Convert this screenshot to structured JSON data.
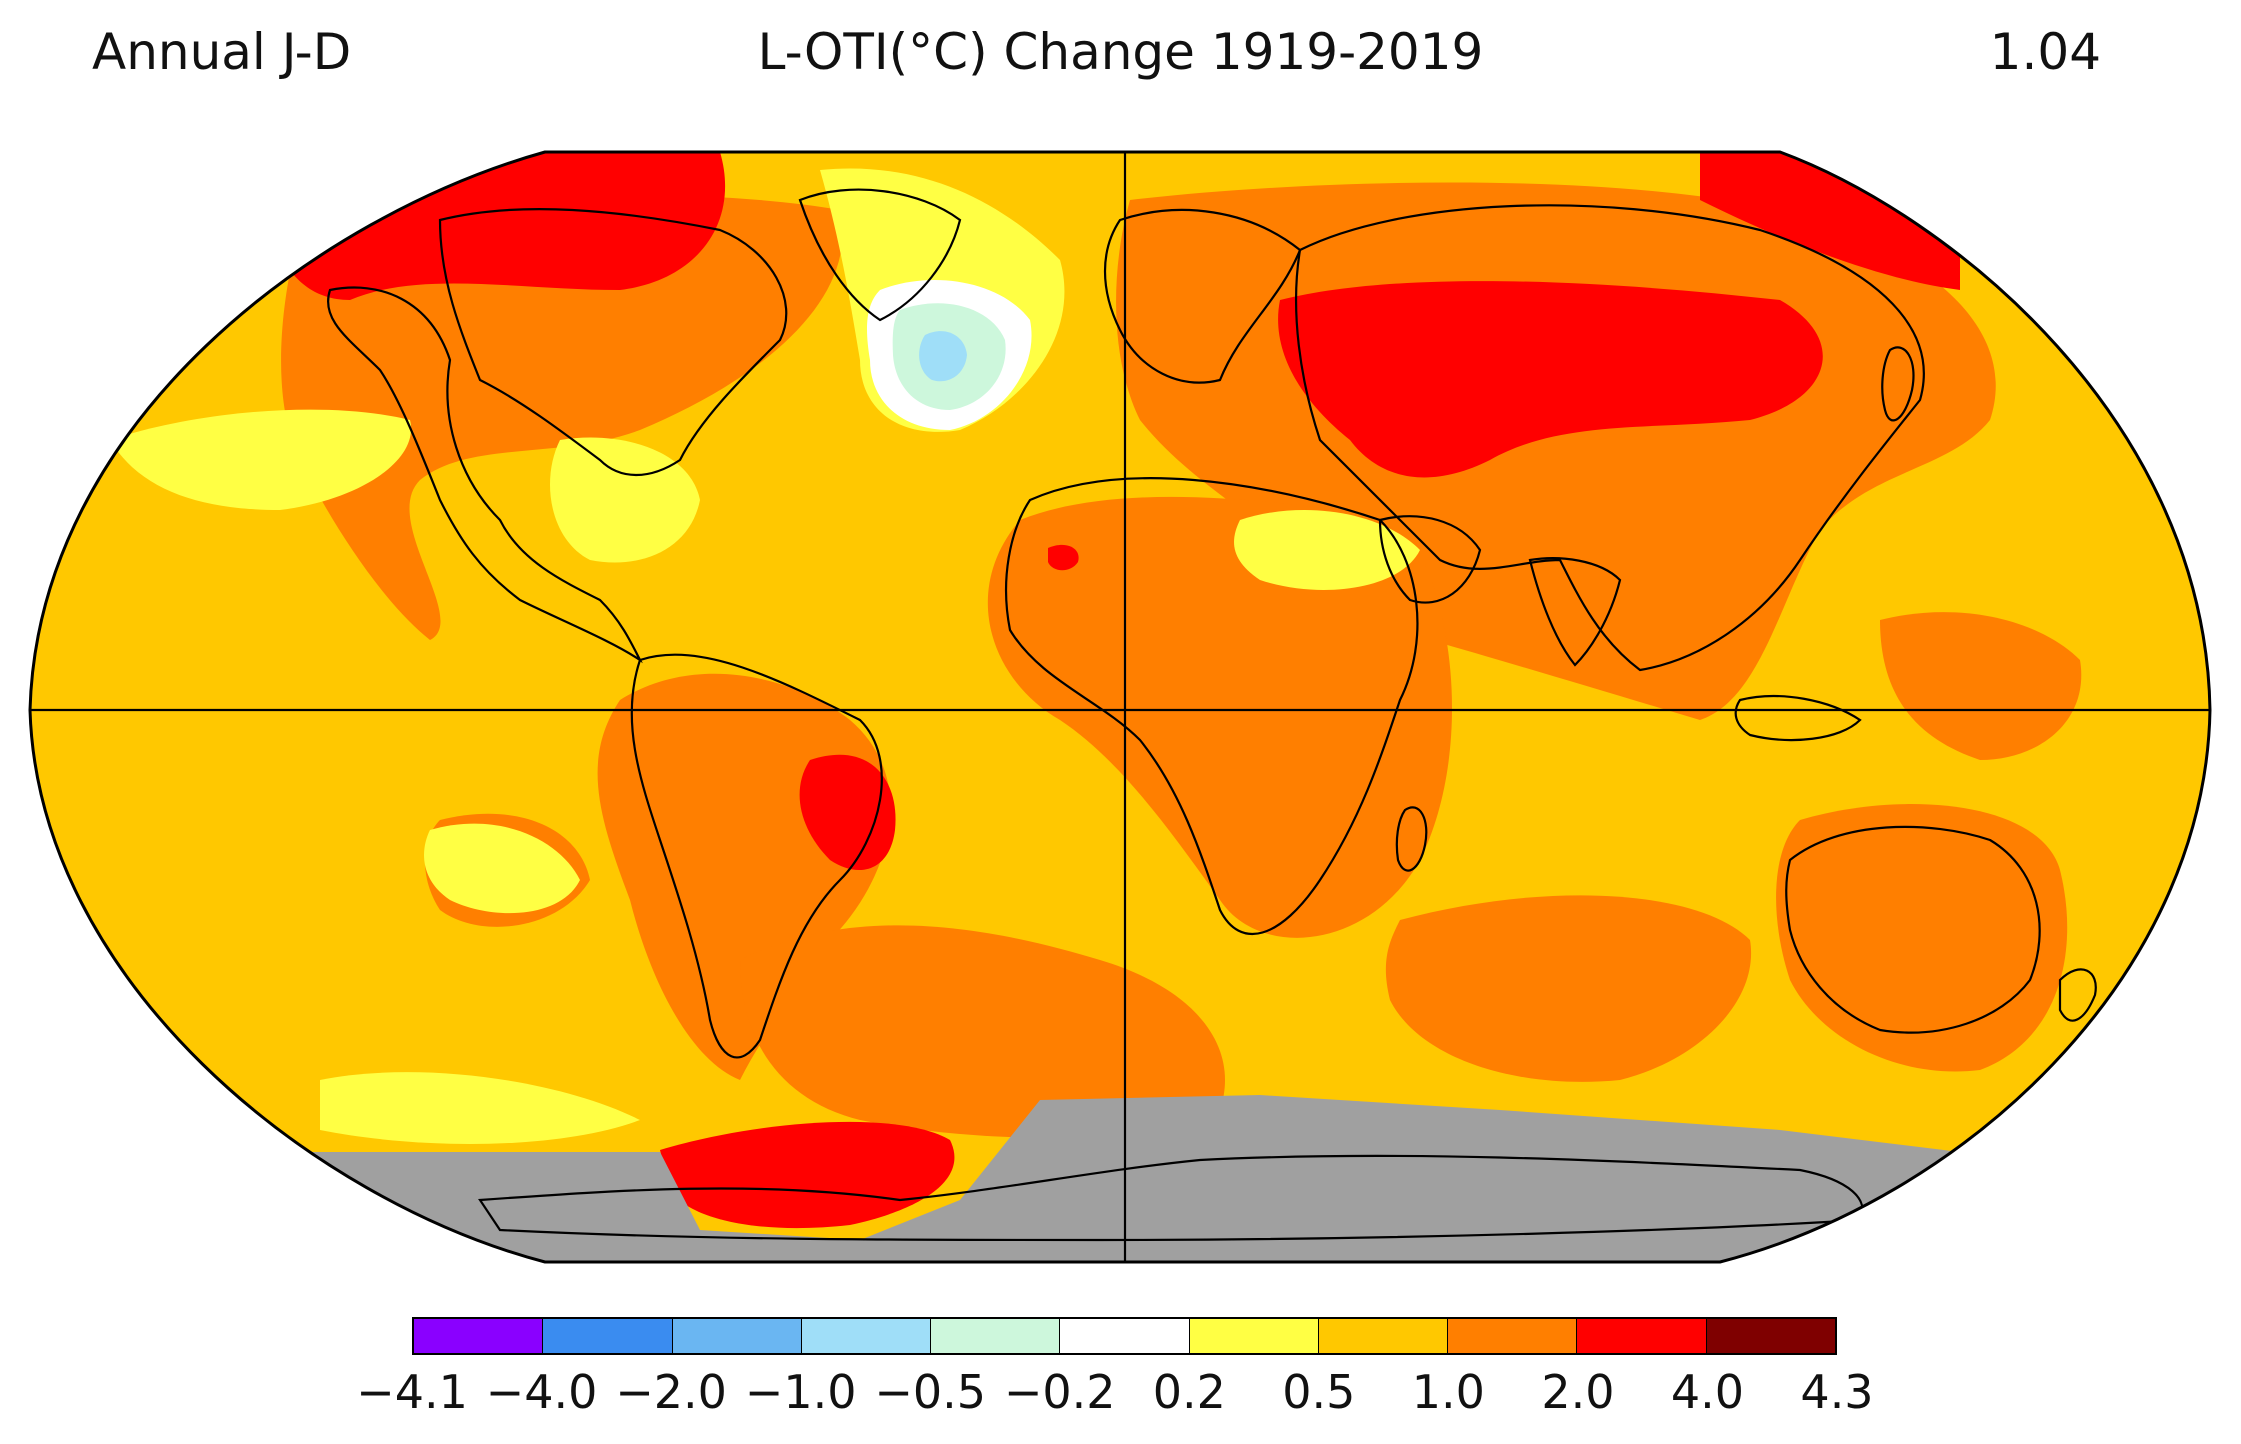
{
  "header": {
    "period": "Annual J-D",
    "title": "L-OTI(°C) Change 1919-2019",
    "global_mean": "1.04"
  },
  "legend": {
    "ticks": [
      "−4.1",
      "−4.0",
      "−2.0",
      "−1.0",
      "−0.5",
      "−0.2",
      "0.2",
      "0.5",
      "1.0",
      "2.0",
      "4.0",
      "4.3"
    ],
    "colors": [
      "#8a00ff",
      "#3a8cf0",
      "#6ab6f2",
      "#9fdef8",
      "#cdf7dc",
      "#ffffff",
      "#ffff44",
      "#ffc800",
      "#ff7f00",
      "#ff0000",
      "#7f0000"
    ]
  },
  "palette": {
    "ocean_base": "#ffc800",
    "warm": "#ff7f00",
    "hot": "#ff0000",
    "mild": "#ffff44",
    "cool_white": "#ffffff",
    "cool_green": "#cdf7dc",
    "cool_blue": "#9fdef8",
    "no_data": "#a0a0a0",
    "line": "#000000"
  }
}
